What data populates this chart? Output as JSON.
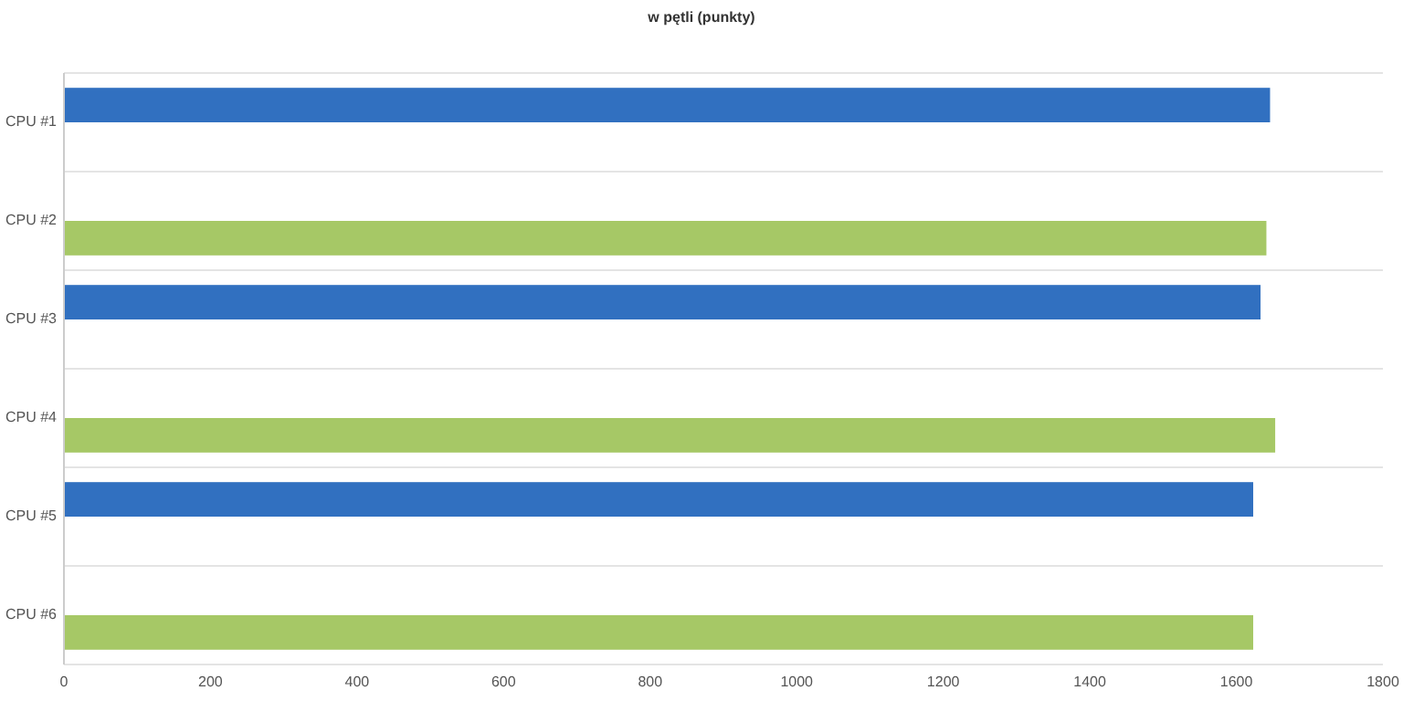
{
  "chart_data": {
    "type": "bar",
    "orientation": "horizontal",
    "title": "w pętli (punkty)",
    "categories": [
      "CPU #1",
      "CPU #2",
      "CPU #3",
      "CPU #4",
      "CPU #5",
      "CPU #6"
    ],
    "series": [
      {
        "color": "#3170c0",
        "values": [
          1646,
          null,
          1633,
          null,
          1623,
          null
        ]
      },
      {
        "color": "#a6c866",
        "values": [
          null,
          1641,
          null,
          1653,
          null,
          1623
        ]
      }
    ],
    "xlim": [
      0,
      1800
    ],
    "xticks": [
      0,
      200,
      400,
      600,
      800,
      1000,
      1200,
      1400,
      1600,
      1800
    ],
    "grid": "y"
  }
}
